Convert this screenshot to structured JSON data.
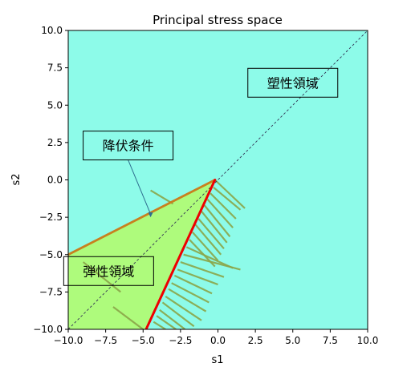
{
  "chart_data": {
    "type": "area",
    "title": "Principal stress space",
    "xlabel": "s1",
    "ylabel": "s2",
    "xlim": [
      -10,
      10
    ],
    "ylim": [
      -10,
      10
    ],
    "xticks": [
      -10,
      -7.5,
      -5,
      -2.5,
      0,
      2.5,
      5,
      7.5,
      10
    ],
    "yticks": [
      -10,
      -7.5,
      -5,
      -2.5,
      0,
      2.5,
      5,
      7.5,
      10
    ],
    "xtick_labels": [
      "−10.0",
      "−7.5",
      "−5.0",
      "−2.5",
      "0.0",
      "2.5",
      "5.0",
      "7.5",
      "10.0"
    ],
    "ytick_labels": [
      "−10.0",
      "−7.5",
      "−5.0",
      "−2.5",
      "0.0",
      "2.5",
      "5.0",
      "7.5",
      "10.0"
    ],
    "grid": false,
    "colors": {
      "plastic_region": "#8dfbe9",
      "elastic_region": "#aefb7c",
      "yield_line_upper": "#c8801e",
      "yield_line_lower": "#ee0000",
      "hatch": "#8ba64a",
      "diagonal": "#333355"
    },
    "regions": [
      {
        "name": "plastic",
        "polygon": [
          [
            -10,
            -10
          ],
          [
            10,
            -10
          ],
          [
            10,
            10
          ],
          [
            -10,
            10
          ]
        ]
      },
      {
        "name": "elastic",
        "polygon": [
          [
            -10,
            -10
          ],
          [
            -10,
            -5
          ],
          [
            -0.2,
            0
          ],
          [
            -4.8,
            -10
          ]
        ]
      }
    ],
    "yield_lines": [
      {
        "points": [
          [
            -10,
            -5
          ],
          [
            -0.2,
            0
          ]
        ]
      },
      {
        "points": [
          [
            -0.2,
            0
          ],
          [
            -4.8,
            -10
          ]
        ]
      }
    ],
    "diagonal": {
      "points": [
        [
          -10,
          -10
        ],
        [
          10,
          10
        ]
      ],
      "style": "dashed"
    },
    "hatch_segments": [
      [
        [
          -4.5,
          -0.7
        ],
        [
          -3.0,
          -1.6
        ]
      ],
      [
        [
          -0.2,
          0
        ],
        [
          1.8,
          -1.9
        ]
      ],
      [
        [
          -0.3,
          -0.5
        ],
        [
          1.5,
          -2.0
        ]
      ],
      [
        [
          -0.5,
          -0.9
        ],
        [
          1.2,
          -2.6
        ]
      ],
      [
        [
          -0.7,
          -1.3
        ],
        [
          1.0,
          -3.2
        ]
      ],
      [
        [
          -0.9,
          -1.7
        ],
        [
          0.8,
          -3.8
        ]
      ],
      [
        [
          -1.1,
          -2.1
        ],
        [
          0.6,
          -4.2
        ]
      ],
      [
        [
          -1.3,
          -2.6
        ],
        [
          0.4,
          -4.6
        ]
      ],
      [
        [
          -1.5,
          -3.0
        ],
        [
          0.2,
          -5.0
        ]
      ],
      [
        [
          -1.7,
          -3.5
        ],
        [
          0.0,
          -5.4
        ]
      ],
      [
        [
          -1.9,
          -4.0
        ],
        [
          -0.2,
          -5.8
        ]
      ],
      [
        [
          -2.1,
          -4.5
        ],
        [
          1.0,
          -5.9
        ]
      ],
      [
        [
          -2.3,
          -5.0
        ],
        [
          1.5,
          -6.0
        ]
      ],
      [
        [
          -2.5,
          -5.5
        ],
        [
          0.4,
          -6.5
        ]
      ],
      [
        [
          -2.7,
          -6.0
        ],
        [
          0.0,
          -7.0
        ]
      ],
      [
        [
          -2.9,
          -6.4
        ],
        [
          -0.4,
          -7.6
        ]
      ],
      [
        [
          -3.1,
          -6.9
        ],
        [
          -0.6,
          -8.2
        ]
      ],
      [
        [
          -3.3,
          -7.3
        ],
        [
          -0.8,
          -8.8
        ]
      ],
      [
        [
          -3.5,
          -7.8
        ],
        [
          -1.1,
          -9.4
        ]
      ],
      [
        [
          -3.7,
          -8.2
        ],
        [
          -1.6,
          -9.8
        ]
      ],
      [
        [
          -3.9,
          -8.7
        ],
        [
          -2.2,
          -10.0
        ]
      ],
      [
        [
          -4.1,
          -9.1
        ],
        [
          -2.8,
          -10.0
        ]
      ],
      [
        [
          -4.3,
          -9.5
        ],
        [
          -3.5,
          -10.0
        ]
      ],
      [
        [
          -9.0,
          -5.5
        ],
        [
          -6.5,
          -7.5
        ]
      ],
      [
        [
          -7.0,
          -8.5
        ],
        [
          -5.0,
          -10.0
        ]
      ]
    ],
    "annotations": [
      {
        "text": "塑性領域",
        "x": 5.0,
        "y": 6.5
      },
      {
        "text": "降伏条件",
        "x": -6.0,
        "y": 2.3,
        "arrow_to": [
          -4.5,
          -2.5
        ]
      },
      {
        "text": "弾性領域",
        "x": -7.3,
        "y": -6.1
      }
    ]
  }
}
